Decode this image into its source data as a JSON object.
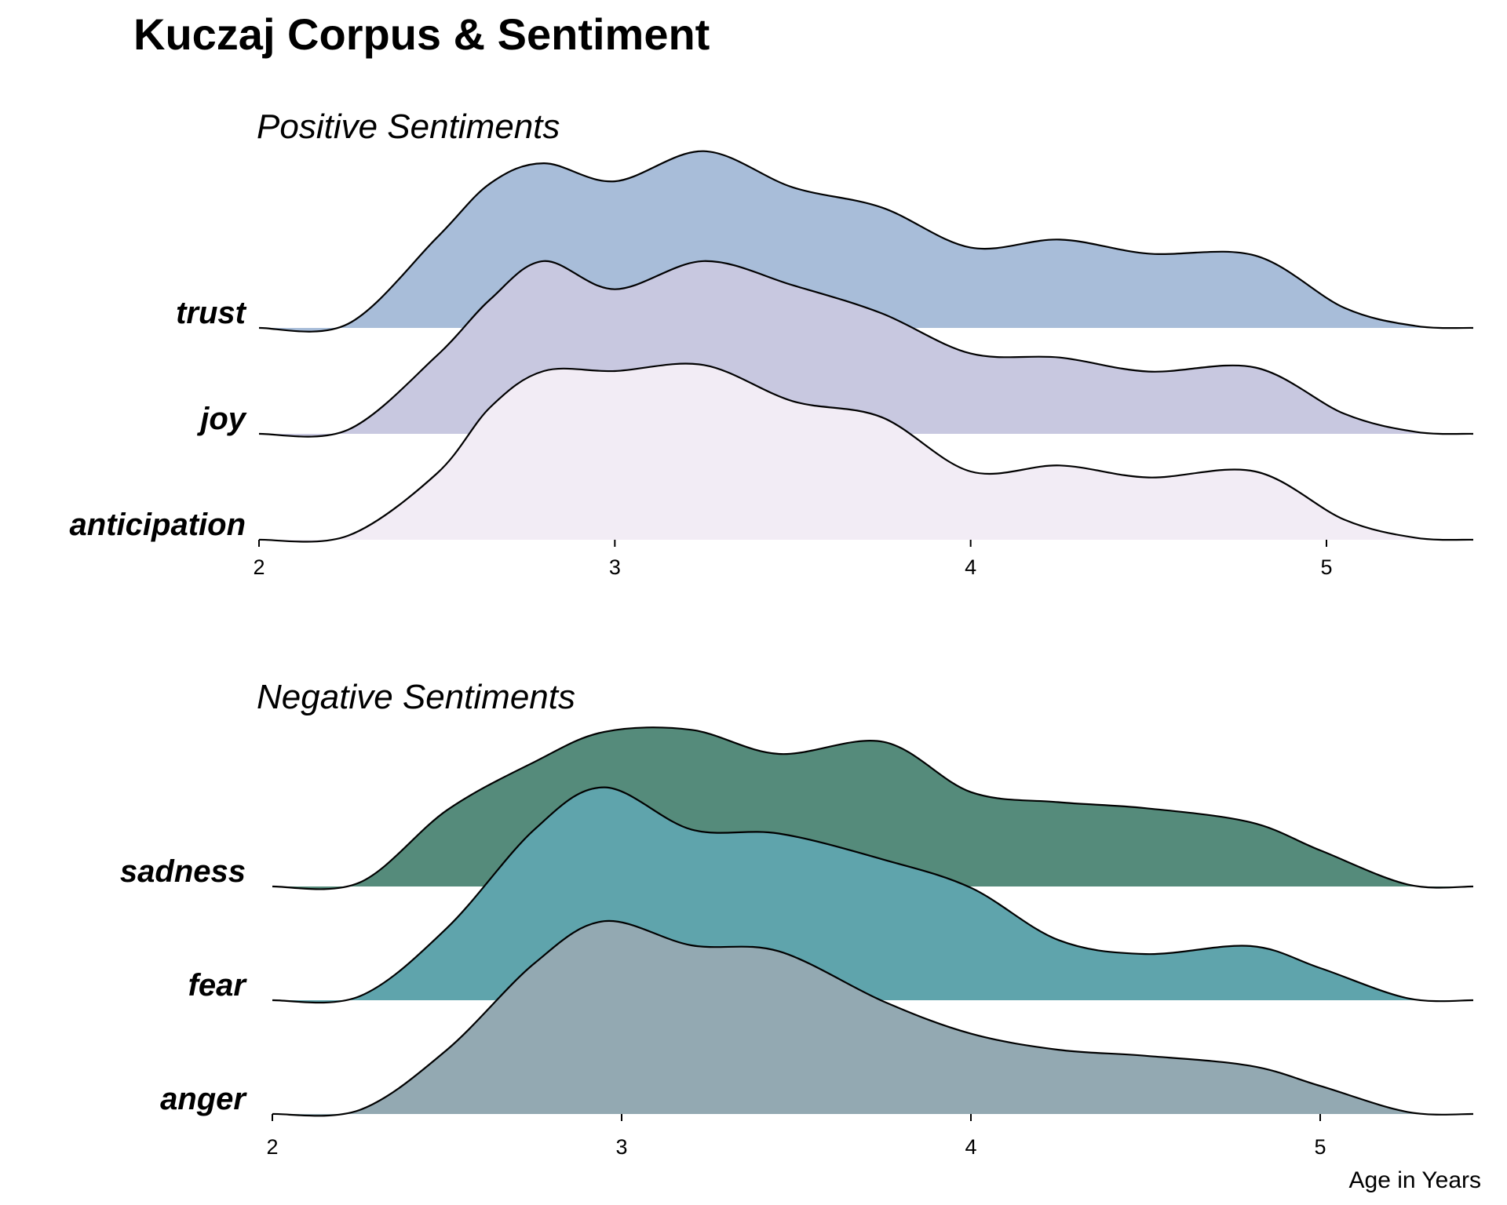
{
  "title": "Kuczaj Corpus & Sentiment",
  "xlabel": "Age in Years",
  "chart_data": [
    {
      "type": "ridgeline",
      "title": "Positive Sentiments",
      "xlim": [
        2,
        5.4
      ],
      "x_ticks": [
        "2",
        "3",
        "4",
        "5"
      ],
      "x": [
        2.0,
        2.25,
        2.5,
        2.65,
        2.8,
        3.0,
        3.25,
        3.5,
        3.75,
        4.0,
        4.25,
        4.5,
        4.8,
        5.05,
        5.25,
        5.4
      ],
      "series": [
        {
          "name": "trust",
          "color": "#a8bdd9",
          "density": [
            0.0,
            0.02,
            0.45,
            0.72,
            0.82,
            0.73,
            0.88,
            0.7,
            0.6,
            0.4,
            0.44,
            0.37,
            0.36,
            0.1,
            0.01,
            0.0
          ]
        },
        {
          "name": "joy",
          "color": "#c8c8e0",
          "density": [
            0.0,
            0.02,
            0.39,
            0.67,
            0.86,
            0.72,
            0.86,
            0.74,
            0.6,
            0.4,
            0.38,
            0.31,
            0.33,
            0.1,
            0.01,
            0.0
          ]
        },
        {
          "name": "anticipation",
          "color": "#f2ecf5",
          "density": [
            0.0,
            0.02,
            0.33,
            0.66,
            0.84,
            0.84,
            0.87,
            0.69,
            0.61,
            0.34,
            0.37,
            0.31,
            0.34,
            0.1,
            0.01,
            0.0
          ]
        }
      ]
    },
    {
      "type": "ridgeline",
      "title": "Negative Sentiments",
      "xlim": [
        2,
        5.4
      ],
      "x_ticks": [
        "2",
        "3",
        "4",
        "5"
      ],
      "x": [
        2.0,
        2.25,
        2.5,
        2.75,
        2.95,
        3.2,
        3.45,
        3.75,
        4.0,
        4.25,
        4.5,
        4.8,
        5.0,
        5.25,
        5.4
      ],
      "series": [
        {
          "name": "sadness",
          "color": "#558b7b",
          "density": [
            0.0,
            0.02,
            0.38,
            0.62,
            0.77,
            0.78,
            0.66,
            0.72,
            0.47,
            0.42,
            0.39,
            0.32,
            0.18,
            0.01,
            0.0
          ]
        },
        {
          "name": "fear",
          "color": "#5fa4ac",
          "density": [
            0.0,
            0.02,
            0.36,
            0.85,
            1.06,
            0.85,
            0.83,
            0.7,
            0.56,
            0.3,
            0.23,
            0.27,
            0.16,
            0.01,
            0.0
          ]
        },
        {
          "name": "anger",
          "color": "#93a9b2",
          "density": [
            0.0,
            0.02,
            0.32,
            0.75,
            0.96,
            0.84,
            0.81,
            0.56,
            0.4,
            0.32,
            0.29,
            0.24,
            0.14,
            0.01,
            0.0
          ]
        }
      ]
    }
  ]
}
